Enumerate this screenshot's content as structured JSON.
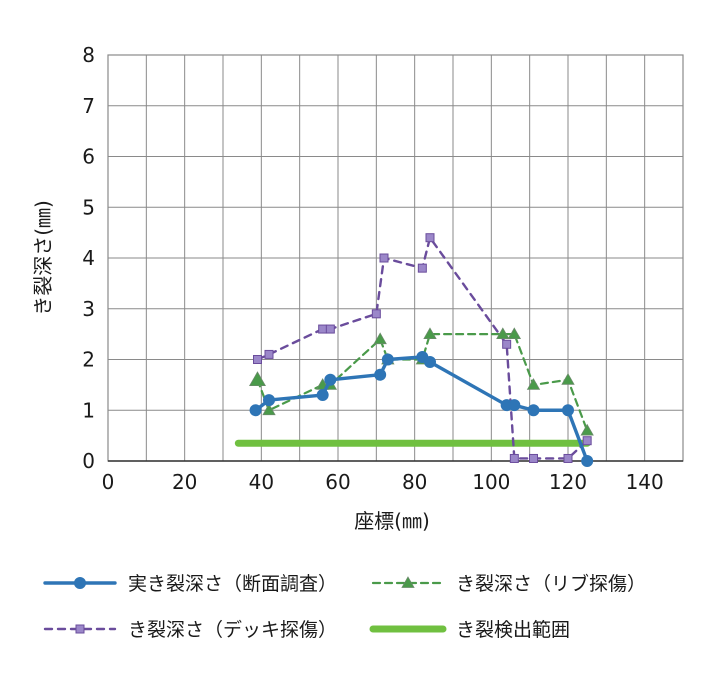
{
  "chart_data": {
    "type": "line",
    "xlabel": "座標(㎜)",
    "ylabel": "き裂深さ(㎜)",
    "xlim": [
      0,
      150
    ],
    "ylim": [
      0,
      8
    ],
    "xticks": [
      0,
      20,
      40,
      60,
      80,
      100,
      120,
      140
    ],
    "yticks": [
      0,
      1,
      2,
      3,
      4,
      5,
      6,
      7,
      8
    ],
    "xtick_labels": [
      "0",
      "20",
      "40",
      "60",
      "80",
      "100",
      "120",
      "140"
    ],
    "ytick_labels": [
      "0",
      "1",
      "2",
      "3",
      "4",
      "5",
      "6",
      "7",
      "8"
    ],
    "grid": true,
    "legend_position": "bottom",
    "series": [
      {
        "key": "actual",
        "name": "実き裂深さ（断面調査）",
        "color": "#2e75b6",
        "marker": "circle",
        "dash": "solid",
        "points": [
          [
            38.5,
            1.0
          ],
          [
            42,
            1.2
          ],
          [
            56,
            1.3
          ],
          [
            58,
            1.6
          ],
          [
            71,
            1.7
          ],
          [
            73,
            2.0
          ],
          [
            82,
            2.05
          ],
          [
            84,
            1.95
          ],
          [
            104,
            1.1
          ],
          [
            106,
            1.1
          ],
          [
            111,
            1.0
          ],
          [
            120,
            1.0
          ],
          [
            125,
            0.0
          ]
        ]
      },
      {
        "key": "rib",
        "name": "き裂深さ（リブ探傷）",
        "color": "#4a9a4a",
        "marker": "triangle",
        "dash": "dashed",
        "points": [
          [
            39,
            1.6
          ],
          [
            42,
            1.0
          ],
          [
            56,
            1.5
          ],
          [
            58,
            1.5
          ],
          [
            71,
            2.4
          ],
          [
            73,
            2.0
          ],
          [
            82,
            2.0
          ],
          [
            84,
            2.5
          ],
          [
            103,
            2.5
          ],
          [
            106,
            2.5
          ],
          [
            111,
            1.5
          ],
          [
            120,
            1.6
          ],
          [
            125,
            0.6
          ]
        ]
      },
      {
        "key": "deck",
        "name": "き裂深さ（デッキ探傷）",
        "color": "#6a4c9c",
        "marker": "square",
        "dash": "dashed",
        "points": [
          [
            39,
            2.0
          ],
          [
            42,
            2.1
          ],
          [
            56,
            2.6
          ],
          [
            58,
            2.6
          ],
          [
            70,
            2.9
          ],
          [
            72,
            4.0
          ],
          [
            82,
            3.8
          ],
          [
            84,
            4.4
          ],
          [
            104,
            2.3
          ],
          [
            106,
            0.05
          ],
          [
            111,
            0.05
          ],
          [
            120,
            0.05
          ],
          [
            125,
            0.4
          ]
        ]
      },
      {
        "key": "range",
        "name": "き裂検出範囲",
        "color": "#70c040",
        "marker": "none",
        "dash": "solid",
        "points": [
          [
            34,
            0.35
          ],
          [
            125,
            0.35
          ]
        ]
      }
    ]
  }
}
